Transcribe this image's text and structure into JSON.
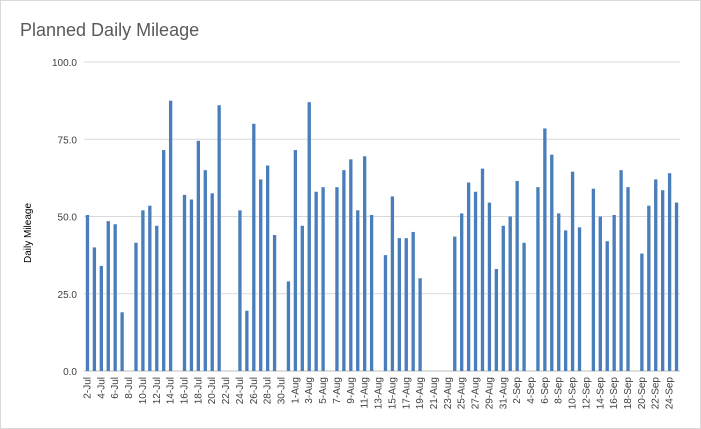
{
  "chart_data": {
    "type": "bar",
    "title": "Planned Daily Mileage",
    "xlabel": "",
    "ylabel": "Daily Mileage",
    "ylim": [
      0,
      100
    ],
    "yticks": [
      "0.0",
      "25.0",
      "50.0",
      "75.0",
      "100.0"
    ],
    "grid": true,
    "bar_color": "#4a7ebb",
    "categories": [
      "2-Jul",
      "3-Jul",
      "4-Jul",
      "5-Jul",
      "6-Jul",
      "7-Jul",
      "8-Jul",
      "9-Jul",
      "10-Jul",
      "11-Jul",
      "12-Jul",
      "13-Jul",
      "14-Jul",
      "15-Jul",
      "16-Jul",
      "17-Jul",
      "18-Jul",
      "19-Jul",
      "20-Jul",
      "21-Jul",
      "22-Jul",
      "23-Jul",
      "24-Jul",
      "25-Jul",
      "26-Jul",
      "27-Jul",
      "28-Jul",
      "29-Jul",
      "30-Jul",
      "31-Jul",
      "1-Aug",
      "2-Aug",
      "3-Aug",
      "4-Aug",
      "5-Aug",
      "6-Aug",
      "7-Aug",
      "8-Aug",
      "9-Aug",
      "10-Aug",
      "11-Aug",
      "12-Aug",
      "13-Aug",
      "14-Aug",
      "15-Aug",
      "16-Aug",
      "17-Aug",
      "18-Aug",
      "19-Aug",
      "20-Aug",
      "21-Aug",
      "22-Aug",
      "23-Aug",
      "24-Aug",
      "25-Aug",
      "26-Aug",
      "27-Aug",
      "28-Aug",
      "29-Aug",
      "30-Aug",
      "31-Aug",
      "1-Sep",
      "2-Sep",
      "3-Sep",
      "4-Sep",
      "5-Sep",
      "6-Sep",
      "7-Sep",
      "8-Sep",
      "9-Sep",
      "10-Sep",
      "11-Sep",
      "12-Sep",
      "13-Sep",
      "14-Sep",
      "15-Sep",
      "16-Sep",
      "17-Sep",
      "18-Sep",
      "19-Sep",
      "20-Sep",
      "21-Sep",
      "22-Sep",
      "23-Sep",
      "24-Sep",
      "25-Sep"
    ],
    "tick_labels": [
      "2-Jul",
      "4-Jul",
      "6-Jul",
      "8-Jul",
      "10-Jul",
      "12-Jul",
      "14-Jul",
      "16-Jul",
      "18-Jul",
      "20-Jul",
      "22-Jul",
      "24-Jul",
      "26-Jul",
      "28-Jul",
      "30-Jul",
      "1-Aug",
      "3-Aug",
      "5-Aug",
      "7-Aug",
      "9-Aug",
      "11-Aug",
      "13-Aug",
      "15-Aug",
      "17-Aug",
      "19-Aug",
      "21-Aug",
      "23-Aug",
      "25-Aug",
      "27-Aug",
      "29-Aug",
      "31-Aug",
      "2-Sep",
      "4-Sep",
      "6-Sep",
      "8-Sep",
      "10-Sep",
      "12-Sep",
      "14-Sep",
      "16-Sep",
      "18-Sep",
      "20-Sep",
      "22-Sep",
      "24-Sep"
    ],
    "values": [
      50.5,
      40,
      34,
      48.5,
      47.5,
      19,
      0,
      41.5,
      52,
      53.5,
      47,
      71.5,
      87.5,
      0,
      57,
      55.5,
      74.5,
      65,
      57.5,
      86,
      0,
      0,
      52,
      19.5,
      80,
      62,
      66.5,
      44,
      0,
      29,
      71.5,
      47,
      87,
      58,
      59.5,
      0,
      59.5,
      65,
      68.5,
      52,
      69.5,
      50.5,
      0,
      37.5,
      56.5,
      43,
      43,
      45,
      30,
      0,
      0,
      0,
      0,
      43.5,
      51,
      61,
      58,
      65.5,
      54.5,
      33,
      47,
      50,
      61.5,
      41.5,
      0,
      59.5,
      78.5,
      70,
      51,
      45.5,
      64.5,
      46.5,
      0,
      59,
      50,
      42,
      50.5,
      65,
      59.5,
      0,
      38,
      53.5,
      62,
      58.5,
      64,
      54.5
    ]
  }
}
